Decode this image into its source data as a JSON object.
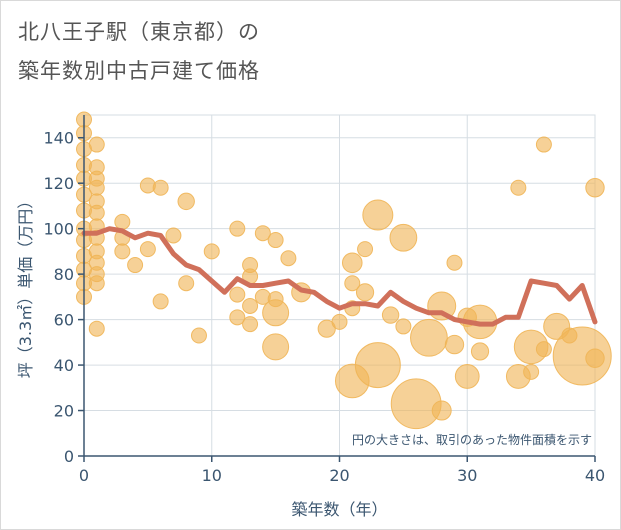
{
  "title_line1": "北八王子駅（東京都）の",
  "title_line2": "築年数別中古戸建て価格",
  "chart_data": {
    "type": "scatter",
    "xlabel": "築年数（年）",
    "ylabel": "坪（3.3㎡）単価（万円）",
    "xlim": [
      0,
      40
    ],
    "ylim": [
      0,
      150
    ],
    "x_ticks": [
      "0",
      "10",
      "20",
      "30",
      "40"
    ],
    "y_ticks": [
      "0",
      "20",
      "40",
      "60",
      "80",
      "100",
      "120",
      "140"
    ],
    "grid": true,
    "note": "円の大きさは、取引のあった物件面積を示す",
    "bubble_color": "#f0b557",
    "line_color": "#d0705a",
    "bubbles": [
      {
        "x": 0,
        "y": 148,
        "s": 1
      },
      {
        "x": 0,
        "y": 142,
        "s": 1
      },
      {
        "x": 0,
        "y": 135,
        "s": 1
      },
      {
        "x": 0,
        "y": 128,
        "s": 1
      },
      {
        "x": 0,
        "y": 122,
        "s": 1
      },
      {
        "x": 0,
        "y": 115,
        "s": 1
      },
      {
        "x": 0,
        "y": 108,
        "s": 1
      },
      {
        "x": 0,
        "y": 100,
        "s": 1
      },
      {
        "x": 0,
        "y": 95,
        "s": 1
      },
      {
        "x": 0,
        "y": 88,
        "s": 1
      },
      {
        "x": 0,
        "y": 82,
        "s": 1
      },
      {
        "x": 0,
        "y": 76,
        "s": 1
      },
      {
        "x": 0,
        "y": 70,
        "s": 1
      },
      {
        "x": 1,
        "y": 137,
        "s": 1
      },
      {
        "x": 1,
        "y": 127,
        "s": 1
      },
      {
        "x": 1,
        "y": 122,
        "s": 1
      },
      {
        "x": 1,
        "y": 118,
        "s": 1
      },
      {
        "x": 1,
        "y": 112,
        "s": 1
      },
      {
        "x": 1,
        "y": 107,
        "s": 1
      },
      {
        "x": 1,
        "y": 101,
        "s": 1
      },
      {
        "x": 1,
        "y": 96,
        "s": 1
      },
      {
        "x": 1,
        "y": 90,
        "s": 1
      },
      {
        "x": 1,
        "y": 85,
        "s": 1
      },
      {
        "x": 1,
        "y": 80,
        "s": 1
      },
      {
        "x": 1,
        "y": 76,
        "s": 1
      },
      {
        "x": 1,
        "y": 56,
        "s": 1
      },
      {
        "x": 3,
        "y": 103,
        "s": 1
      },
      {
        "x": 3,
        "y": 96,
        "s": 1
      },
      {
        "x": 3,
        "y": 90,
        "s": 1
      },
      {
        "x": 4,
        "y": 84,
        "s": 1
      },
      {
        "x": 5,
        "y": 119,
        "s": 1
      },
      {
        "x": 5,
        "y": 91,
        "s": 1
      },
      {
        "x": 6,
        "y": 118,
        "s": 1
      },
      {
        "x": 6,
        "y": 68,
        "s": 1
      },
      {
        "x": 7,
        "y": 97,
        "s": 1
      },
      {
        "x": 8,
        "y": 112,
        "s": 1.2
      },
      {
        "x": 8,
        "y": 76,
        "s": 1
      },
      {
        "x": 9,
        "y": 53,
        "s": 1
      },
      {
        "x": 10,
        "y": 90,
        "s": 1
      },
      {
        "x": 12,
        "y": 100,
        "s": 1
      },
      {
        "x": 12,
        "y": 71,
        "s": 1
      },
      {
        "x": 12,
        "y": 61,
        "s": 1
      },
      {
        "x": 13,
        "y": 84,
        "s": 1
      },
      {
        "x": 13,
        "y": 79,
        "s": 1
      },
      {
        "x": 13,
        "y": 66,
        "s": 1
      },
      {
        "x": 13,
        "y": 58,
        "s": 1
      },
      {
        "x": 14,
        "y": 98,
        "s": 1
      },
      {
        "x": 14,
        "y": 70,
        "s": 1
      },
      {
        "x": 15,
        "y": 95,
        "s": 1
      },
      {
        "x": 15,
        "y": 69,
        "s": 1
      },
      {
        "x": 15,
        "y": 63,
        "s": 3
      },
      {
        "x": 15,
        "y": 48,
        "s": 3
      },
      {
        "x": 16,
        "y": 87,
        "s": 1
      },
      {
        "x": 17,
        "y": 72,
        "s": 1.6
      },
      {
        "x": 19,
        "y": 56,
        "s": 1.3
      },
      {
        "x": 20,
        "y": 59,
        "s": 1
      },
      {
        "x": 21,
        "y": 85,
        "s": 1.7
      },
      {
        "x": 21,
        "y": 76,
        "s": 1
      },
      {
        "x": 21,
        "y": 65,
        "s": 1
      },
      {
        "x": 21,
        "y": 33,
        "s": 5
      },
      {
        "x": 22,
        "y": 91,
        "s": 1
      },
      {
        "x": 22,
        "y": 72,
        "s": 1.3
      },
      {
        "x": 23,
        "y": 106,
        "s": 4
      },
      {
        "x": 23,
        "y": 40,
        "s": 9
      },
      {
        "x": 24,
        "y": 62,
        "s": 1.2
      },
      {
        "x": 25,
        "y": 96,
        "s": 3.2
      },
      {
        "x": 25,
        "y": 57,
        "s": 1
      },
      {
        "x": 26,
        "y": 23,
        "s": 11
      },
      {
        "x": 27,
        "y": 52,
        "s": 6
      },
      {
        "x": 28,
        "y": 66,
        "s": 3.5
      },
      {
        "x": 28,
        "y": 20,
        "s": 1.6
      },
      {
        "x": 29,
        "y": 85,
        "s": 1
      },
      {
        "x": 29,
        "y": 49,
        "s": 1.5
      },
      {
        "x": 30,
        "y": 35,
        "s": 2.5
      },
      {
        "x": 30,
        "y": 61,
        "s": 1.5
      },
      {
        "x": 31,
        "y": 59,
        "s": 5
      },
      {
        "x": 31,
        "y": 46,
        "s": 1.3
      },
      {
        "x": 34,
        "y": 118,
        "s": 1
      },
      {
        "x": 34,
        "y": 35,
        "s": 2.5
      },
      {
        "x": 35,
        "y": 48,
        "s": 5
      },
      {
        "x": 35,
        "y": 37,
        "s": 1
      },
      {
        "x": 36,
        "y": 137,
        "s": 1
      },
      {
        "x": 36,
        "y": 47,
        "s": 1
      },
      {
        "x": 37,
        "y": 57,
        "s": 3
      },
      {
        "x": 38,
        "y": 53,
        "s": 1
      },
      {
        "x": 39,
        "y": 44,
        "s": 15
      },
      {
        "x": 40,
        "y": 118,
        "s": 1.5
      },
      {
        "x": 40,
        "y": 43,
        "s": 1.5
      }
    ],
    "series": [
      {
        "x": [
          0,
          1,
          2,
          3,
          4,
          5,
          6,
          7,
          8,
          9,
          10,
          11,
          12,
          13,
          14,
          15,
          16,
          17,
          18,
          19,
          20,
          21,
          22,
          23,
          24,
          25,
          26,
          27,
          28,
          29,
          30,
          31,
          32,
          33,
          34,
          35,
          36,
          37,
          38,
          39,
          40
        ],
        "values": [
          98,
          98,
          100,
          99,
          96,
          98,
          97,
          89,
          84,
          82,
          77,
          72,
          78,
          75,
          75,
          76,
          77,
          73,
          72,
          68,
          65,
          67,
          67,
          66,
          72,
          68,
          65,
          63,
          63,
          60,
          59,
          58,
          58,
          61,
          61,
          77,
          76,
          75,
          69,
          75,
          59
        ]
      }
    ]
  }
}
